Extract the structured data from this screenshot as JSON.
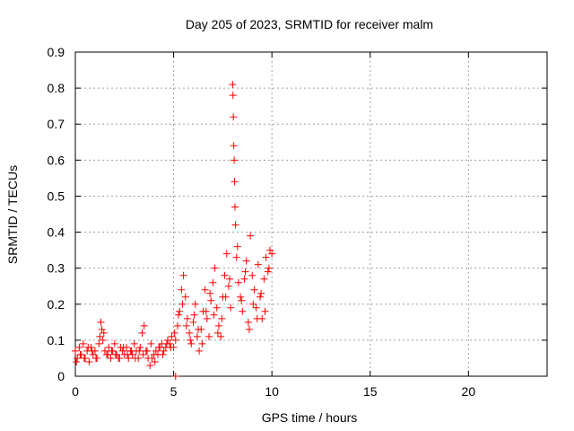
{
  "chart_data": {
    "type": "scatter",
    "title": "Day 205 of 2023, SRMTID for receiver malm",
    "xlabel": "GPS time / hours",
    "ylabel": "SRMTID / TECUs",
    "xlim": [
      0,
      24
    ],
    "ylim": [
      0,
      0.9
    ],
    "xticks": [
      0,
      5,
      10,
      15,
      20
    ],
    "xtick_labels": [
      "0",
      "5",
      "10",
      "15",
      "20"
    ],
    "yticks": [
      0,
      0.1,
      0.2,
      0.3,
      0.4,
      0.5,
      0.6,
      0.7,
      0.8,
      0.9
    ],
    "ytick_labels": [
      "0",
      "0.1",
      "0.2",
      "0.3",
      "0.4",
      "0.5",
      "0.6",
      "0.7",
      "0.8",
      "0.9"
    ],
    "grid": true,
    "marker": "+",
    "color": "#ff0000",
    "series": [
      {
        "name": "SRMTID",
        "x": [
          0.0,
          0.1,
          0.2,
          0.3,
          0.4,
          0.5,
          0.6,
          0.7,
          0.8,
          0.9,
          1.0,
          1.1,
          1.2,
          1.3,
          1.35,
          1.4,
          1.5,
          1.6,
          1.7,
          1.8,
          1.9,
          2.0,
          2.1,
          2.2,
          2.3,
          2.4,
          2.5,
          2.6,
          2.7,
          2.8,
          2.9,
          3.0,
          3.1,
          3.2,
          3.3,
          3.4,
          3.5,
          3.6,
          3.7,
          3.8,
          3.9,
          4.0,
          4.1,
          4.2,
          4.3,
          4.4,
          4.5,
          4.6,
          4.7,
          4.8,
          4.9,
          5.0,
          5.1,
          5.2,
          5.3,
          5.4,
          5.5,
          5.6,
          5.7,
          5.8,
          5.9,
          6.0,
          6.1,
          6.2,
          6.3,
          6.4,
          6.5,
          6.6,
          6.7,
          6.8,
          6.9,
          7.0,
          7.1,
          7.2,
          7.3,
          7.4,
          7.5,
          7.6,
          7.7,
          7.8,
          7.9,
          8.0,
          8.02,
          8.04,
          8.06,
          8.08,
          8.1,
          8.12,
          8.15,
          8.2,
          8.3,
          8.4,
          8.5,
          8.6,
          8.7,
          8.8,
          8.9,
          9.0,
          9.1,
          9.2,
          9.3,
          9.4,
          9.5,
          9.6,
          9.7,
          9.8,
          9.9,
          10.0,
          0.05,
          0.25,
          0.45,
          0.65,
          0.85,
          1.05,
          1.25,
          1.45,
          1.65,
          1.85,
          2.05,
          2.25,
          2.45,
          2.65,
          2.85,
          3.05,
          3.25,
          3.45,
          3.65,
          3.85,
          4.05,
          4.25,
          4.45,
          4.65,
          4.85,
          5.05,
          5.25,
          5.45,
          5.65,
          5.85,
          6.05,
          6.25,
          6.45,
          6.65,
          6.85,
          7.05,
          7.25,
          7.45,
          7.65,
          7.85,
          8.25,
          8.45,
          8.65,
          8.85,
          9.05,
          9.25,
          9.45,
          9.65,
          9.85,
          5.1
        ],
        "y": [
          0.07,
          0.05,
          0.08,
          0.06,
          0.09,
          0.05,
          0.07,
          0.04,
          0.08,
          0.06,
          0.07,
          0.05,
          0.09,
          0.15,
          0.13,
          0.1,
          0.07,
          0.06,
          0.08,
          0.05,
          0.07,
          0.09,
          0.06,
          0.05,
          0.08,
          0.07,
          0.06,
          0.08,
          0.05,
          0.07,
          0.06,
          0.09,
          0.07,
          0.05,
          0.08,
          0.12,
          0.14,
          0.07,
          0.05,
          0.03,
          0.05,
          0.06,
          0.07,
          0.06,
          0.08,
          0.09,
          0.07,
          0.08,
          0.1,
          0.09,
          0.11,
          0.08,
          0.1,
          0.14,
          0.18,
          0.24,
          0.28,
          0.22,
          0.16,
          0.12,
          0.09,
          0.15,
          0.2,
          0.11,
          0.07,
          0.13,
          0.18,
          0.24,
          0.16,
          0.11,
          0.21,
          0.26,
          0.3,
          0.19,
          0.14,
          0.11,
          0.22,
          0.28,
          0.34,
          0.25,
          0.19,
          0.81,
          0.78,
          0.72,
          0.64,
          0.6,
          0.54,
          0.47,
          0.42,
          0.33,
          0.26,
          0.22,
          0.18,
          0.27,
          0.32,
          0.15,
          0.39,
          0.28,
          0.24,
          0.19,
          0.31,
          0.22,
          0.16,
          0.27,
          0.33,
          0.29,
          0.35,
          0.34,
          0.04,
          0.06,
          0.05,
          0.08,
          0.07,
          0.05,
          0.11,
          0.12,
          0.06,
          0.07,
          0.06,
          0.05,
          0.08,
          0.06,
          0.07,
          0.05,
          0.07,
          0.06,
          0.07,
          0.09,
          0.04,
          0.08,
          0.06,
          0.09,
          0.08,
          0.12,
          0.17,
          0.2,
          0.14,
          0.1,
          0.17,
          0.13,
          0.09,
          0.18,
          0.23,
          0.17,
          0.12,
          0.16,
          0.22,
          0.27,
          0.36,
          0.21,
          0.29,
          0.13,
          0.2,
          0.16,
          0.23,
          0.18,
          0.3,
          0.0
        ]
      }
    ]
  }
}
